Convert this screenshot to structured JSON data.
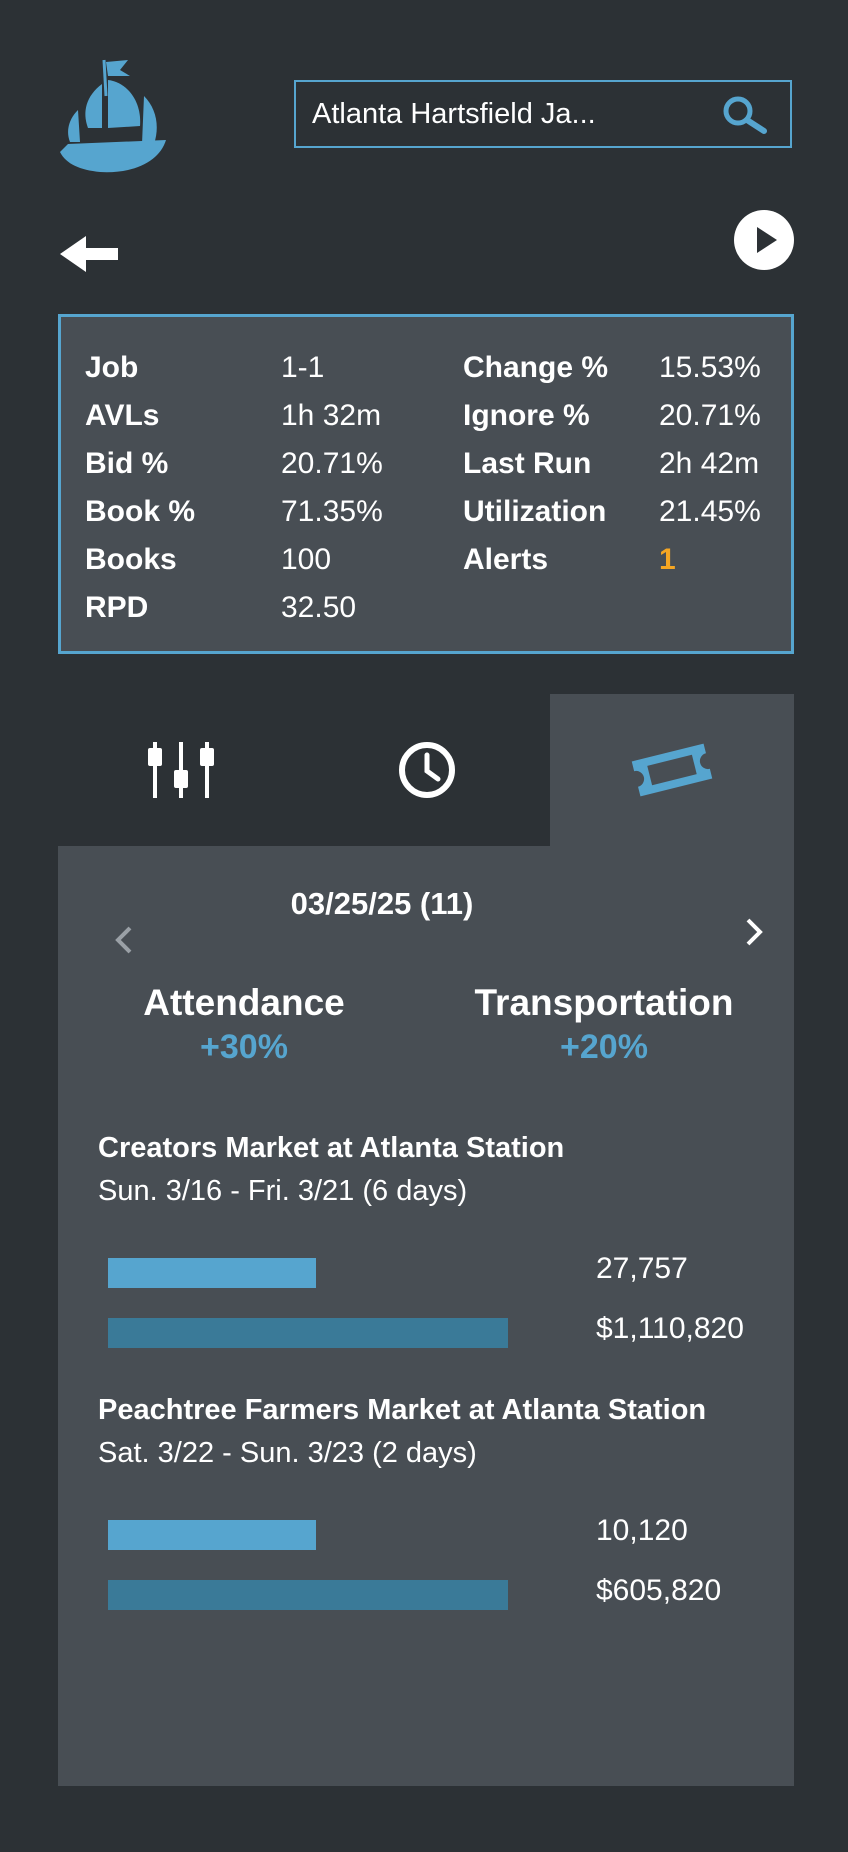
{
  "header": {
    "search_value": "Atlanta Hartsfield Ja..."
  },
  "stats": {
    "rows": [
      {
        "label1": "Job",
        "value1": "1-1",
        "label2": "Change %",
        "value2": "15.53%"
      },
      {
        "label1": "AVLs",
        "value1": "1h 32m",
        "label2": "Ignore %",
        "value2": "20.71%"
      },
      {
        "label1": "Bid %",
        "value1": "20.71%",
        "label2": "Last Run",
        "value2": "2h 42m"
      },
      {
        "label1": "Book %",
        "value1": "71.35%",
        "label2": "Utilization",
        "value2": "21.45%"
      },
      {
        "label1": "Books",
        "value1": "100",
        "label2": "Alerts",
        "value2": "1"
      },
      {
        "label1": "RPD",
        "value1": "32.50",
        "label2": "",
        "value2": ""
      }
    ],
    "alert_color": "#f5a623"
  },
  "tabs": [
    {
      "icon": "sliders-icon",
      "active": false
    },
    {
      "icon": "clock-icon",
      "active": false
    },
    {
      "icon": "ticket-icon",
      "active": true
    }
  ],
  "panel": {
    "date_label": "03/25/25 (11)",
    "metrics": [
      {
        "title": "Attendance",
        "value": "+30%"
      },
      {
        "title": "Transportation",
        "value": "+20%"
      }
    ],
    "events": [
      {
        "name": "Creators Market at Atlanta Station",
        "dates": "Sun. 3/16 - Fri. 3/21 (6 days)",
        "attendance": "27,757",
        "attendance_fill": 0.52,
        "revenue": "$1,110,820",
        "revenue_fill": 1.0
      },
      {
        "name": "Peachtree Farmers Market at Atlanta Station",
        "dates": "Sat. 3/22 - Sun. 3/23 (2 days)",
        "attendance": "10,120",
        "attendance_fill": 0.52,
        "revenue": "$605,820",
        "revenue_fill": 1.0
      }
    ]
  },
  "colors": {
    "background": "#2c3135",
    "panel": "#484e54",
    "accent": "#56a5cf",
    "bar_dark": "#3a7a98"
  }
}
